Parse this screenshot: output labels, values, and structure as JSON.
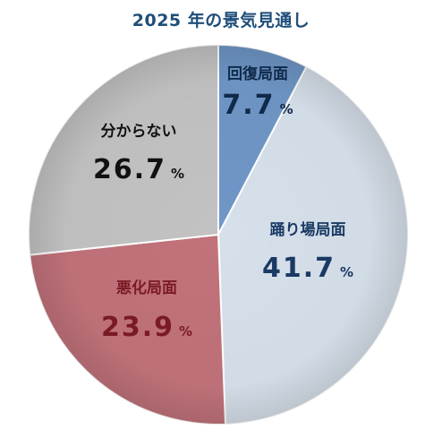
{
  "chart_data": {
    "type": "pie",
    "title": "2025 年の景気見通し",
    "percent_sign": "%",
    "start_angle_deg": 0,
    "direction": "clockwise",
    "slices": [
      {
        "label": "回復局面",
        "value": 7.7,
        "display": "7.7",
        "color": "#6f96c6",
        "text_color": "#0f2a4a"
      },
      {
        "label": "踊り場局面",
        "value": 41.7,
        "display": "41.7",
        "color": "#d6e0ea",
        "text_color": "#1a3a64"
      },
      {
        "label": "悪化局面",
        "value": 23.9,
        "display": "23.9",
        "color": "#c1727a",
        "text_color": "#7a1a24"
      },
      {
        "label": "分からない",
        "value": 26.7,
        "display": "26.7",
        "color": "#c2c2c2",
        "text_color": "#111111"
      }
    ]
  }
}
